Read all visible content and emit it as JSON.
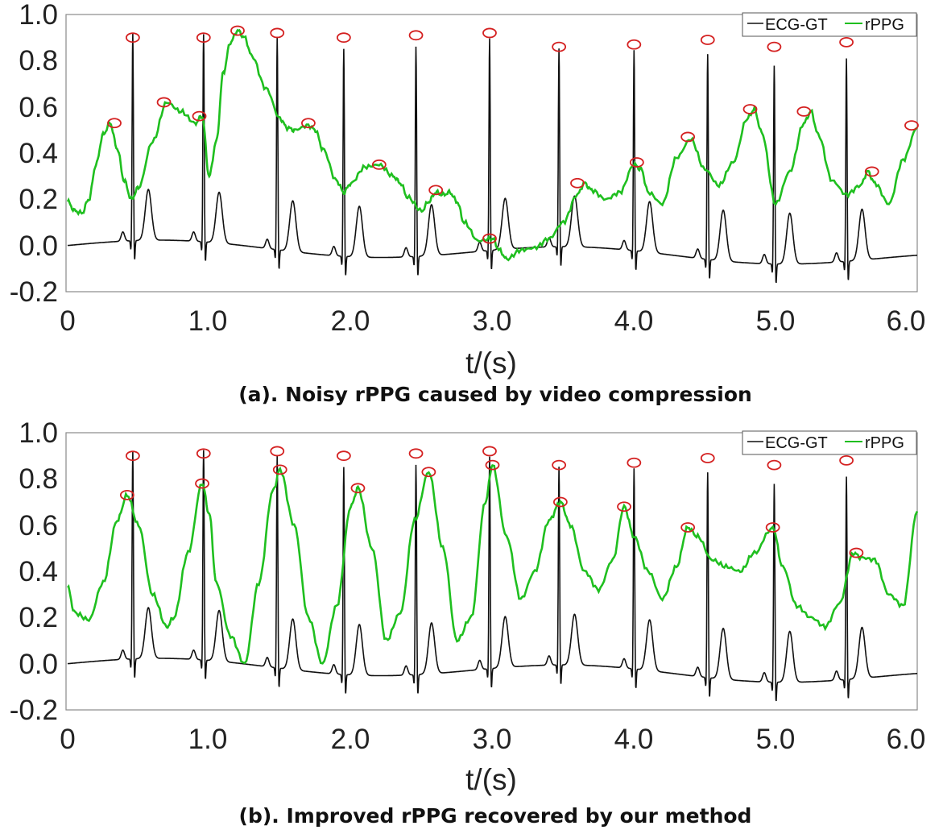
{
  "colors": {
    "ecg": "#111111",
    "rppg": "#1fbf1f",
    "peak": "#d42020",
    "axis": "#8a8a8a"
  },
  "chart_data": [
    {
      "type": "line",
      "caption": "(a). Noisy rPPG caused by video compression",
      "xlabel": "t/(s)",
      "xlim": [
        0,
        6.0
      ],
      "ylim": [
        -0.2,
        1.0
      ],
      "xticks": [
        "0",
        "1.0",
        "2.0",
        "3.0",
        "4.0",
        "5.0",
        "6.0"
      ],
      "yticks": [
        "-0.2",
        "0.0",
        "0.2",
        "0.4",
        "0.6",
        "0.8",
        "1.0"
      ],
      "legend": {
        "position": "top-right",
        "entries": [
          "ECG-GT",
          "rPPG"
        ]
      },
      "series": [
        {
          "name": "ECG-GT",
          "r_peaks": [
            {
              "t": 0.46,
              "v": 0.9
            },
            {
              "t": 0.96,
              "v": 0.9
            },
            {
              "t": 1.48,
              "v": 0.92
            },
            {
              "t": 1.95,
              "v": 0.9
            },
            {
              "t": 2.46,
              "v": 0.91
            },
            {
              "t": 2.98,
              "v": 0.92
            },
            {
              "t": 3.47,
              "v": 0.86
            },
            {
              "t": 4.0,
              "v": 0.87
            },
            {
              "t": 4.52,
              "v": 0.89
            },
            {
              "t": 4.99,
              "v": 0.86
            },
            {
              "t": 5.5,
              "v": 0.88
            }
          ]
        },
        {
          "name": "rPPG",
          "x": [
            0,
            0.05,
            0.1,
            0.15,
            0.2,
            0.25,
            0.3,
            0.35,
            0.4,
            0.45,
            0.5,
            0.6,
            0.7,
            0.8,
            0.9,
            0.95,
            1.0,
            1.05,
            1.1,
            1.15,
            1.2,
            1.25,
            1.3,
            1.4,
            1.5,
            1.55,
            1.6,
            1.7,
            1.75,
            1.8,
            1.9,
            1.95,
            2.0,
            2.1,
            2.2,
            2.3,
            2.35,
            2.4,
            2.5,
            2.55,
            2.6,
            2.65,
            2.7,
            2.75,
            2.8,
            2.9,
            3.0,
            3.05,
            3.1,
            3.2,
            3.3,
            3.4,
            3.5,
            3.6,
            3.65,
            3.7,
            3.8,
            3.9,
            4.0,
            4.05,
            4.1,
            4.2,
            4.3,
            4.4,
            4.5,
            4.6,
            4.7,
            4.8,
            4.85,
            4.9,
            5.0,
            5.1,
            5.2,
            5.25,
            5.3,
            5.4,
            5.5,
            5.6,
            5.65,
            5.7,
            5.8,
            5.9,
            6.0
          ],
          "y": [
            0.19,
            0.15,
            0.14,
            0.2,
            0.35,
            0.48,
            0.53,
            0.42,
            0.28,
            0.2,
            0.25,
            0.45,
            0.62,
            0.58,
            0.53,
            0.56,
            0.3,
            0.45,
            0.75,
            0.88,
            0.93,
            0.9,
            0.82,
            0.68,
            0.55,
            0.51,
            0.5,
            0.52,
            0.5,
            0.42,
            0.28,
            0.23,
            0.27,
            0.34,
            0.35,
            0.3,
            0.27,
            0.21,
            0.15,
            0.19,
            0.23,
            0.22,
            0.23,
            0.19,
            0.1,
            0.02,
            0.03,
            -0.02,
            -0.06,
            -0.02,
            -0.01,
            0.03,
            0.1,
            0.22,
            0.27,
            0.24,
            0.2,
            0.23,
            0.35,
            0.33,
            0.23,
            0.18,
            0.38,
            0.46,
            0.33,
            0.26,
            0.36,
            0.55,
            0.59,
            0.49,
            0.18,
            0.32,
            0.53,
            0.58,
            0.48,
            0.28,
            0.22,
            0.26,
            0.32,
            0.27,
            0.18,
            0.37,
            0.51
          ]
        }
      ],
      "rppg_peaks": [
        {
          "t": 0.33,
          "v": 0.53
        },
        {
          "t": 0.68,
          "v": 0.62
        },
        {
          "t": 0.93,
          "v": 0.56
        },
        {
          "t": 1.2,
          "v": 0.93
        },
        {
          "t": 1.7,
          "v": 0.53
        },
        {
          "t": 2.2,
          "v": 0.35
        },
        {
          "t": 2.6,
          "v": 0.24
        },
        {
          "t": 2.98,
          "v": 0.03
        },
        {
          "t": 3.6,
          "v": 0.27
        },
        {
          "t": 4.02,
          "v": 0.36
        },
        {
          "t": 4.38,
          "v": 0.47
        },
        {
          "t": 4.82,
          "v": 0.59
        },
        {
          "t": 5.2,
          "v": 0.58
        },
        {
          "t": 5.68,
          "v": 0.32
        },
        {
          "t": 5.96,
          "v": 0.52
        }
      ]
    },
    {
      "type": "line",
      "caption": "(b). Improved rPPG recovered by our method",
      "xlabel": "t/(s)",
      "xlim": [
        0,
        6.0
      ],
      "ylim": [
        -0.2,
        1.0
      ],
      "xticks": [
        "0",
        "1.0",
        "2.0",
        "3.0",
        "4.0",
        "5.0",
        "6.0"
      ],
      "yticks": [
        "-0.2",
        "0.0",
        "0.2",
        "0.4",
        "0.6",
        "0.8",
        "1.0"
      ],
      "legend": {
        "position": "top-right",
        "entries": [
          "ECG-GT",
          "rPPG"
        ]
      },
      "series": [
        {
          "name": "ECG-GT",
          "r_peaks": [
            {
              "t": 0.46,
              "v": 0.9
            },
            {
              "t": 0.96,
              "v": 0.91
            },
            {
              "t": 1.48,
              "v": 0.92
            },
            {
              "t": 1.95,
              "v": 0.9
            },
            {
              "t": 2.46,
              "v": 0.91
            },
            {
              "t": 2.98,
              "v": 0.92
            },
            {
              "t": 3.47,
              "v": 0.86
            },
            {
              "t": 4.0,
              "v": 0.87
            },
            {
              "t": 4.52,
              "v": 0.89
            },
            {
              "t": 4.99,
              "v": 0.86
            },
            {
              "t": 5.5,
              "v": 0.88
            }
          ]
        },
        {
          "name": "rPPG",
          "x": [
            0,
            0.05,
            0.15,
            0.25,
            0.35,
            0.42,
            0.5,
            0.6,
            0.7,
            0.75,
            0.85,
            0.95,
            1.0,
            1.05,
            1.15,
            1.25,
            1.35,
            1.45,
            1.5,
            1.6,
            1.7,
            1.8,
            1.9,
            2.0,
            2.05,
            2.15,
            2.25,
            2.35,
            2.45,
            2.55,
            2.65,
            2.75,
            2.85,
            2.95,
            3.0,
            3.1,
            3.2,
            3.3,
            3.4,
            3.48,
            3.55,
            3.65,
            3.75,
            3.85,
            3.93,
            4.0,
            4.1,
            4.2,
            4.3,
            4.38,
            4.45,
            4.55,
            4.65,
            4.75,
            4.85,
            4.98,
            5.05,
            5.15,
            5.25,
            5.35,
            5.45,
            5.55,
            5.6,
            5.7,
            5.8,
            5.9,
            6.0
          ],
          "y": [
            0.33,
            0.22,
            0.19,
            0.35,
            0.62,
            0.73,
            0.6,
            0.3,
            0.16,
            0.2,
            0.48,
            0.78,
            0.65,
            0.35,
            0.12,
            0.0,
            0.35,
            0.75,
            0.84,
            0.6,
            0.2,
            0.0,
            0.25,
            0.68,
            0.76,
            0.5,
            0.1,
            0.22,
            0.62,
            0.83,
            0.5,
            0.1,
            0.2,
            0.7,
            0.86,
            0.55,
            0.28,
            0.4,
            0.62,
            0.7,
            0.6,
            0.4,
            0.32,
            0.45,
            0.68,
            0.55,
            0.4,
            0.28,
            0.42,
            0.59,
            0.55,
            0.45,
            0.42,
            0.4,
            0.48,
            0.59,
            0.42,
            0.25,
            0.2,
            0.16,
            0.26,
            0.48,
            0.46,
            0.45,
            0.3,
            0.25,
            0.66
          ]
        }
      ],
      "rppg_peaks": [
        {
          "t": 0.42,
          "v": 0.73
        },
        {
          "t": 0.95,
          "v": 0.78
        },
        {
          "t": 1.5,
          "v": 0.84
        },
        {
          "t": 2.05,
          "v": 0.76
        },
        {
          "t": 2.55,
          "v": 0.83
        },
        {
          "t": 3.0,
          "v": 0.86
        },
        {
          "t": 3.48,
          "v": 0.7
        },
        {
          "t": 3.93,
          "v": 0.68
        },
        {
          "t": 4.38,
          "v": 0.59
        },
        {
          "t": 4.98,
          "v": 0.59
        },
        {
          "t": 5.57,
          "v": 0.48
        }
      ]
    }
  ]
}
